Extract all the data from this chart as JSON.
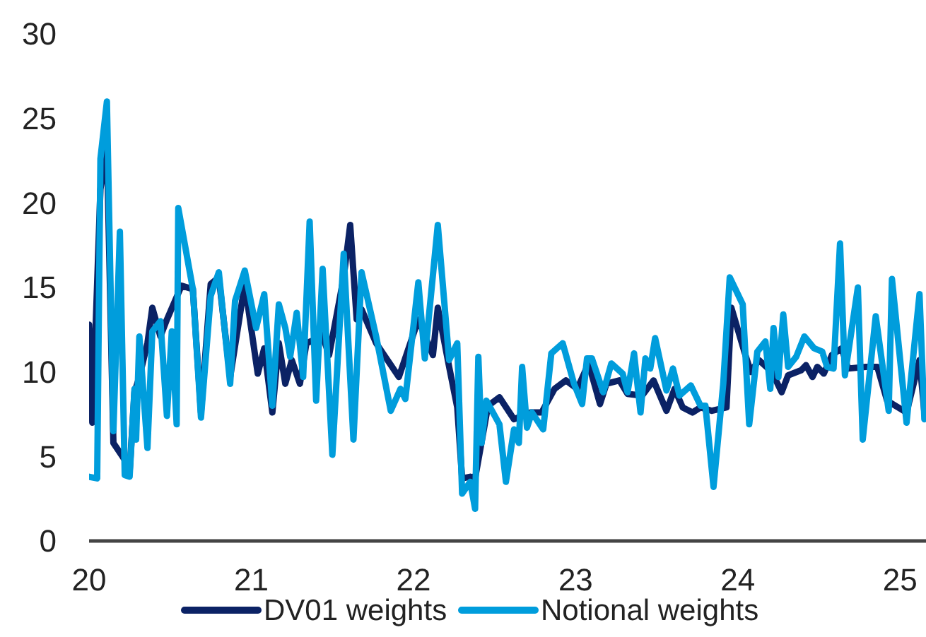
{
  "chart_data": {
    "type": "line",
    "xlim": [
      20,
      25.16
    ],
    "xticks": [
      20,
      21,
      22,
      23,
      24,
      25
    ],
    "ylim": [
      0,
      30
    ],
    "yticks": [
      0,
      5,
      10,
      15,
      20,
      25,
      30
    ],
    "grid": false,
    "legend": "bottom",
    "marker": "none",
    "line_style": "solid",
    "series": [
      {
        "name": "DV01 weights",
        "color": "#0b2265",
        "x": [
          20.0,
          20.02,
          20.07,
          20.11,
          20.15,
          20.22,
          20.25,
          20.28,
          20.31,
          20.36,
          20.39,
          20.44,
          20.48,
          20.57,
          20.64,
          20.69,
          20.75,
          20.8,
          20.87,
          20.96,
          21.04,
          21.08,
          21.13,
          21.17,
          21.21,
          21.25,
          21.3,
          21.34,
          21.39,
          21.43,
          21.48,
          21.57,
          21.61,
          21.65,
          21.68,
          21.77,
          21.91,
          22.03,
          22.12,
          22.15,
          22.22,
          22.27,
          22.3,
          22.35,
          22.38,
          22.46,
          22.53,
          22.62,
          22.72,
          22.79,
          22.87,
          22.94,
          23.01,
          23.08,
          23.15,
          23.19,
          23.27,
          23.32,
          23.41,
          23.48,
          23.56,
          23.61,
          23.66,
          23.72,
          23.77,
          23.84,
          23.93,
          23.96,
          24.04,
          24.08,
          24.13,
          24.21,
          24.27,
          24.31,
          24.39,
          24.42,
          24.46,
          24.49,
          24.53,
          24.58,
          24.64,
          24.68,
          24.79,
          24.86,
          24.92,
          25.04,
          25.12,
          25.15
        ],
        "values": [
          12.8,
          7.0,
          20.8,
          23.3,
          5.8,
          4.8,
          4.1,
          8.8,
          9.7,
          11.7,
          13.8,
          12.1,
          13.1,
          15.1,
          14.9,
          7.6,
          15.2,
          15.6,
          9.7,
          15.2,
          9.9,
          11.4,
          7.6,
          11.7,
          9.3,
          10.7,
          9.3,
          11.7,
          11.9,
          12.4,
          11.0,
          15.6,
          18.7,
          13.1,
          13.7,
          11.7,
          9.7,
          13.1,
          11.0,
          13.8,
          10.3,
          7.9,
          3.7,
          3.8,
          3.7,
          8.0,
          8.5,
          7.2,
          7.6,
          7.6,
          9.0,
          9.5,
          9.0,
          10.5,
          8.1,
          9.3,
          9.5,
          8.7,
          8.6,
          9.5,
          7.7,
          9.0,
          7.9,
          7.6,
          7.9,
          7.7,
          7.9,
          13.8,
          11.2,
          10.0,
          10.7,
          10.0,
          8.8,
          9.8,
          10.1,
          10.4,
          9.7,
          10.3,
          9.9,
          11.0,
          11.4,
          10.2,
          10.3,
          10.3,
          8.3,
          7.6,
          10.7,
          7.6
        ]
      },
      {
        "name": "Notional weights",
        "color": "#009ddc",
        "x": [
          20.0,
          20.05,
          20.07,
          20.11,
          20.15,
          20.19,
          20.22,
          20.25,
          20.28,
          20.29,
          20.31,
          20.36,
          20.39,
          20.44,
          20.48,
          20.51,
          20.54,
          20.55,
          20.64,
          20.69,
          20.75,
          20.8,
          20.87,
          20.9,
          20.96,
          21.03,
          21.08,
          21.13,
          21.17,
          21.21,
          21.24,
          21.28,
          21.32,
          21.36,
          21.4,
          21.44,
          21.5,
          21.57,
          21.63,
          21.68,
          21.77,
          21.86,
          21.92,
          21.95,
          22.03,
          22.07,
          22.15,
          22.22,
          22.27,
          22.3,
          22.35,
          22.38,
          22.4,
          22.42,
          22.45,
          22.53,
          22.57,
          22.62,
          22.65,
          22.67,
          22.7,
          22.73,
          22.8,
          22.85,
          22.92,
          22.99,
          23.04,
          23.07,
          23.1,
          23.17,
          23.22,
          23.29,
          23.32,
          23.36,
          23.4,
          23.43,
          23.46,
          23.49,
          23.56,
          23.6,
          23.64,
          23.71,
          23.77,
          23.8,
          23.85,
          23.91,
          23.95,
          24.03,
          24.07,
          24.12,
          24.17,
          24.2,
          24.22,
          24.25,
          24.28,
          24.31,
          24.36,
          24.41,
          24.47,
          24.52,
          24.55,
          24.59,
          24.63,
          24.66,
          24.74,
          24.77,
          24.85,
          24.93,
          24.95,
          25.04,
          25.12,
          25.15
        ],
        "values": [
          3.8,
          3.7,
          22.6,
          26.0,
          6.5,
          18.3,
          3.9,
          3.8,
          9.0,
          6.0,
          12.1,
          5.5,
          12.4,
          13.0,
          7.4,
          12.4,
          6.9,
          19.7,
          14.9,
          7.3,
          14.5,
          15.9,
          9.3,
          14.2,
          16.0,
          12.6,
          14.6,
          8.0,
          14.0,
          12.6,
          10.9,
          13.5,
          9.7,
          18.9,
          8.3,
          16.1,
          5.1,
          17.0,
          6.0,
          15.9,
          12.1,
          7.7,
          9.0,
          8.4,
          15.3,
          10.8,
          18.7,
          10.7,
          11.7,
          2.8,
          3.5,
          1.9,
          10.9,
          5.8,
          8.3,
          6.9,
          3.5,
          6.6,
          5.8,
          10.3,
          6.7,
          7.6,
          6.6,
          11.1,
          11.7,
          9.3,
          8.1,
          10.8,
          10.8,
          8.8,
          10.5,
          9.9,
          8.8,
          11.1,
          7.6,
          10.8,
          10.2,
          12.0,
          8.9,
          10.2,
          8.6,
          9.2,
          8.0,
          8.0,
          3.2,
          9.3,
          15.6,
          14.0,
          6.9,
          11.2,
          11.8,
          9.0,
          12.6,
          9.7,
          13.4,
          10.3,
          10.9,
          12.1,
          11.4,
          11.2,
          10.3,
          10.2,
          17.6,
          9.8,
          15.0,
          6.0,
          13.3,
          7.7,
          15.5,
          7.0,
          14.6,
          7.2
        ]
      }
    ]
  }
}
